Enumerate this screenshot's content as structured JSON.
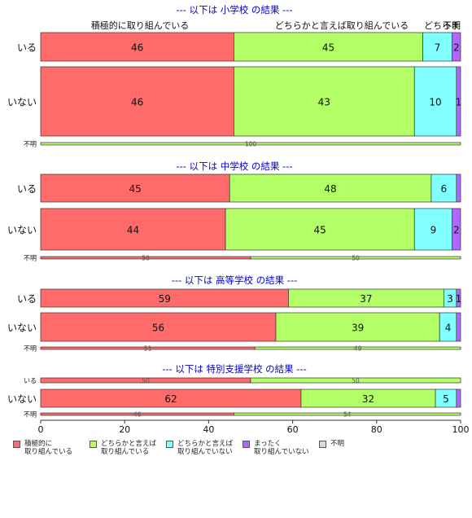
{
  "colors": {
    "cat1": "#ff6b6b",
    "cat2": "#b3ff66",
    "cat3": "#80ffff",
    "cat4": "#b266ff",
    "cat5": "#d9d9d9",
    "title": "#0000cc"
  },
  "legend": [
    {
      "label": "積極的に\n取り組んでいる",
      "color_key": "cat1"
    },
    {
      "label": "どちらかと言えば\n取り組んでいる",
      "color_key": "cat2"
    },
    {
      "label": "どちらかと言えば\n取り組んでいない",
      "color_key": "cat3"
    },
    {
      "label": "まったく\n取り組んでいない",
      "color_key": "cat4"
    },
    {
      "label": "不明",
      "color_key": "cat5"
    }
  ],
  "chart_data": {
    "type": "bar",
    "orientation": "horizontal-stacked-percent",
    "xlim": [
      0,
      100
    ],
    "x_ticks": [
      "0",
      "20",
      "40",
      "60",
      "80",
      "100"
    ],
    "grid": false,
    "legend_position": "bottom",
    "top_header_labels": [
      "積極的に取り組んでいる",
      "どちらかと言えば取り組んでいる",
      "どちらま",
      "不明"
    ],
    "categories": [
      "積極的に取り組んでいる",
      "どちらかと言えば取り組んでいる",
      "どちらかと言えば取り組んでいない",
      "まったく取り組んでいない",
      "不明"
    ],
    "panels": [
      {
        "title": "--- 以下は 小学校 の結果 ---",
        "rows": [
          {
            "label": "いる",
            "values": [
              46,
              45,
              7,
              2,
              0
            ],
            "labels": [
              "46",
              "45",
              "7",
              "2",
              ""
            ]
          },
          {
            "label": "いない",
            "values": [
              46,
              43,
              10,
              1,
              0
            ],
            "labels": [
              "46",
              "43",
              "10",
              "1",
              ""
            ]
          },
          {
            "label": "不明",
            "values": [
              0,
              100,
              0,
              0,
              0
            ],
            "labels": [
              "",
              "100",
              "",
              "",
              ""
            ]
          }
        ]
      },
      {
        "title": "--- 以下は 中学校 の結果 ---",
        "rows": [
          {
            "label": "いる",
            "values": [
              45,
              48,
              6,
              1,
              0
            ],
            "labels": [
              "45",
              "48",
              "6",
              "",
              ""
            ]
          },
          {
            "label": "いない",
            "values": [
              44,
              45,
              9,
              2,
              0
            ],
            "labels": [
              "44",
              "45",
              "9",
              "2",
              ""
            ]
          },
          {
            "label": "不明",
            "values": [
              50,
              50,
              0,
              0,
              0
            ],
            "labels": [
              "50",
              "50",
              "",
              "",
              ""
            ]
          }
        ]
      },
      {
        "title": "--- 以下は 高等学校 の結果 ---",
        "rows": [
          {
            "label": "いる",
            "values": [
              59,
              37,
              3,
              1,
              0
            ],
            "labels": [
              "59",
              "37",
              "3",
              "1",
              ""
            ]
          },
          {
            "label": "いない",
            "values": [
              56,
              39,
              4,
              1,
              0
            ],
            "labels": [
              "56",
              "39",
              "4",
              "",
              ""
            ]
          },
          {
            "label": "不明",
            "values": [
              51,
              49,
              0,
              0,
              0
            ],
            "labels": [
              "51",
              "49",
              "",
              "",
              ""
            ]
          }
        ]
      },
      {
        "title": "--- 以下は 特別支援学校 の結果 ---",
        "rows": [
          {
            "label": "いる",
            "values": [
              50,
              50,
              0,
              0,
              0
            ],
            "labels": [
              "50",
              "50",
              "",
              "",
              ""
            ]
          },
          {
            "label": "いない",
            "values": [
              62,
              32,
              5,
              1,
              0
            ],
            "labels": [
              "62",
              "32",
              "5",
              "",
              ""
            ]
          },
          {
            "label": "不明",
            "values": [
              46,
              54,
              0,
              0,
              0
            ],
            "labels": [
              "46",
              "54",
              "",
              "",
              ""
            ]
          }
        ]
      }
    ]
  }
}
